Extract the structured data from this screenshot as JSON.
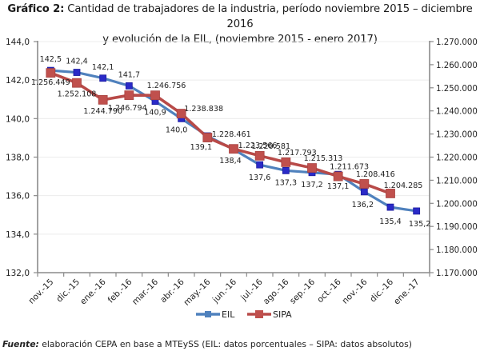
{
  "title": {
    "prefix": "Gráfico 2:",
    "line1": " Cantidad de trabajadores de la industria, período noviembre 2015 – diciembre 2016",
    "line2": "y evolución de la EIL, (noviembre 2015 -  enero 2017)"
  },
  "source": {
    "label": "Fuente:",
    "text": " elaboración CEPA en base a MTEySS (EIL: datos porcentuales – SIPA: datos absolutos)"
  },
  "chart_data": {
    "type": "line",
    "title": "Gráfico 2: Cantidad de trabajadores de la industria, período noviembre 2015 – diciembre 2016 y evolución de la EIL, (noviembre 2015 - enero 2017)",
    "xlabel": "",
    "ylabel_left": "",
    "ylabel_right": "",
    "categories": [
      "nov.-15",
      "dic.-15",
      "ene.-16",
      "feb.-16",
      "mar.-16",
      "abr.-16",
      "may.-16",
      "jun.-16",
      "jul.-16",
      "ago.-16",
      "sep.-16",
      "oct.-16",
      "nov.-16",
      "dic.-16",
      "ene.-17"
    ],
    "y_left": {
      "range": [
        132,
        144
      ],
      "ticks": [
        144,
        142,
        140,
        138,
        136,
        134,
        132
      ],
      "tick_labels": [
        "144,0",
        "142,0",
        "140,0",
        "138,0",
        "136,0",
        "134,0",
        "132,0"
      ]
    },
    "y_right": {
      "range": [
        1170000,
        1270000
      ],
      "ticks": [
        1270000,
        1260000,
        1250000,
        1240000,
        1230000,
        1220000,
        1210000,
        1200000,
        1190000,
        1180000,
        1170000
      ],
      "tick_labels": [
        "1.270.000",
        "1.260.000",
        "1.250.000",
        "1.240.000",
        "1.230.000",
        "1.220.000",
        "1.210.000",
        "1.200.000",
        "1.190.000",
        "1.180.000",
        "1.170.000"
      ]
    },
    "grid": true,
    "legend": "bottom-center",
    "series": [
      {
        "name": "EIL",
        "axis": "left",
        "color": "#4F81BD",
        "marker_color": "#2A2AC8",
        "values": [
          142.5,
          142.4,
          142.1,
          141.7,
          140.9,
          140.0,
          139.1,
          138.4,
          137.6,
          137.3,
          137.2,
          137.1,
          136.2,
          135.4,
          135.2
        ],
        "labels": [
          "142,5",
          "142,4",
          "142,1",
          "141,7",
          "140,9",
          "140,0",
          "139,1",
          "138,4",
          "137,6",
          "137,3",
          "137,2",
          "137,1",
          "136,2",
          "135,4",
          "135,2"
        ]
      },
      {
        "name": "SIPA",
        "axis": "right",
        "color": "#B84A48",
        "marker_color": "#C0504D",
        "values": [
          1256449,
          1252108,
          1244790,
          1246794,
          1246756,
          1238838,
          1228461,
          1223566,
          1220581,
          1217793,
          1215313,
          1211673,
          1208416,
          1204285,
          null
        ],
        "labels": [
          "1.256.449",
          "1.252.108",
          "1.244.790",
          "1.246.794",
          "1.246.756",
          "1.238.838",
          "1.228.461",
          "1.223.566",
          "1.220.581",
          "1.217.793",
          "1.215.313",
          "1.211.673",
          "1.208.416",
          "1.204.285",
          ""
        ]
      }
    ]
  }
}
